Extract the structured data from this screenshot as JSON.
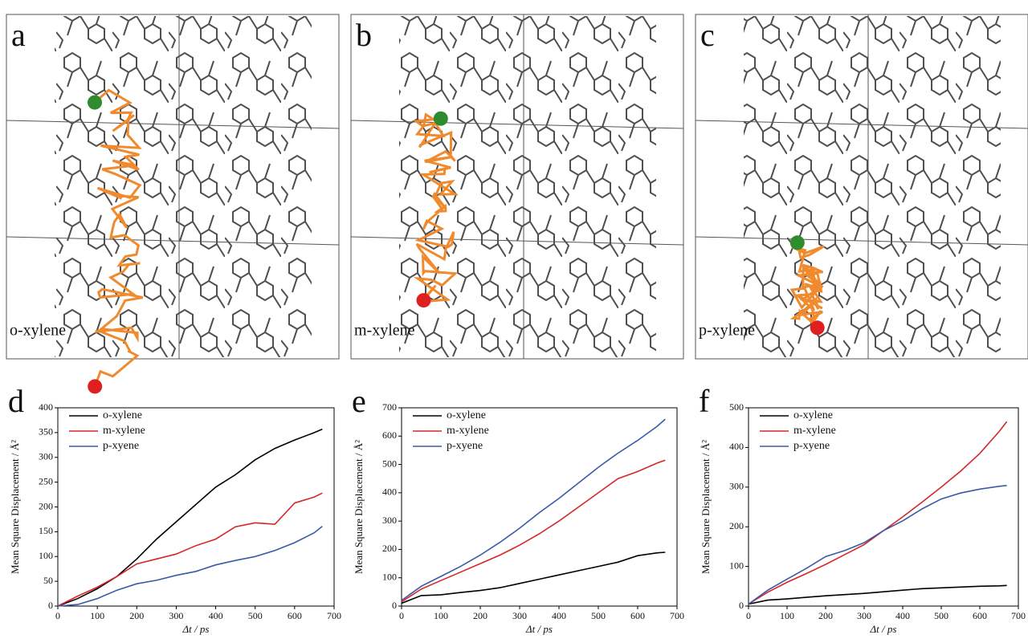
{
  "panels": [
    {
      "label": "a",
      "caption": "o-xylene"
    },
    {
      "label": "b",
      "caption": "m-xylene"
    },
    {
      "label": "c",
      "caption": "p-xylene"
    }
  ],
  "chart_data": [
    {
      "type": "line",
      "panel_label": "d",
      "xlabel": "Δt / ps",
      "ylabel": "Mean Square Displacement / Å²",
      "legend": "upper left",
      "x": [
        0,
        50,
        100,
        150,
        200,
        250,
        300,
        350,
        400,
        450,
        500,
        550,
        600,
        650,
        670
      ],
      "series": [
        {
          "name": "o-xylene",
          "color": "#000000",
          "values": [
            0,
            15,
            35,
            60,
            95,
            135,
            170,
            205,
            240,
            265,
            295,
            318,
            335,
            350,
            357
          ]
        },
        {
          "name": "m-xylene",
          "color": "#d62728",
          "values": [
            0,
            20,
            38,
            60,
            85,
            95,
            105,
            122,
            135,
            160,
            168,
            165,
            208,
            220,
            228
          ]
        },
        {
          "name": "p-xyene",
          "color": "#3a5aa8",
          "values": [
            0,
            3,
            15,
            32,
            45,
            52,
            62,
            70,
            83,
            92,
            100,
            112,
            128,
            148,
            161
          ]
        }
      ],
      "xlim": [
        0,
        700
      ],
      "xticks": [
        0,
        100,
        200,
        300,
        400,
        500,
        600,
        700
      ],
      "ylim": [
        0,
        400
      ],
      "yticks": [
        0,
        50,
        100,
        150,
        200,
        250,
        300,
        350,
        400
      ]
    },
    {
      "type": "line",
      "panel_label": "e",
      "xlabel": "Δt / ps",
      "ylabel": "Mean Square Displacement / Å²",
      "legend": "upper left",
      "x": [
        0,
        50,
        100,
        150,
        200,
        250,
        300,
        350,
        400,
        450,
        500,
        550,
        600,
        650,
        670
      ],
      "series": [
        {
          "name": "o-xylene",
          "color": "#000000",
          "values": [
            10,
            37,
            40,
            48,
            55,
            65,
            80,
            95,
            110,
            125,
            140,
            155,
            178,
            188,
            190
          ]
        },
        {
          "name": "m-xylene",
          "color": "#d62728",
          "values": [
            15,
            60,
            90,
            120,
            150,
            180,
            215,
            255,
            300,
            350,
            400,
            450,
            475,
            505,
            515
          ]
        },
        {
          "name": "p-xyene",
          "color": "#3a5aa8",
          "values": [
            20,
            70,
            105,
            140,
            180,
            225,
            275,
            330,
            380,
            435,
            490,
            540,
            585,
            635,
            660
          ]
        }
      ],
      "xlim": [
        0,
        700
      ],
      "xticks": [
        0,
        100,
        200,
        300,
        400,
        500,
        600,
        700
      ],
      "ylim": [
        0,
        700
      ],
      "yticks": [
        0,
        100,
        200,
        300,
        400,
        500,
        600,
        700
      ]
    },
    {
      "type": "line",
      "panel_label": "f",
      "xlabel": "Δt / ps",
      "ylabel": "Mean Square Displacement / Å²",
      "legend": "upper left",
      "x": [
        0,
        50,
        100,
        150,
        200,
        250,
        300,
        350,
        400,
        450,
        500,
        550,
        600,
        650,
        670
      ],
      "series": [
        {
          "name": "o-xylene",
          "color": "#000000",
          "values": [
            5,
            15,
            18,
            22,
            26,
            29,
            32,
            36,
            40,
            44,
            46,
            48,
            50,
            51,
            52
          ]
        },
        {
          "name": "m-xylene",
          "color": "#d62728",
          "values": [
            5,
            35,
            60,
            82,
            105,
            130,
            155,
            190,
            225,
            262,
            300,
            340,
            385,
            440,
            465
          ]
        },
        {
          "name": "p-xyene",
          "color": "#3a5aa8",
          "values": [
            5,
            40,
            68,
            95,
            125,
            140,
            160,
            190,
            215,
            245,
            270,
            285,
            295,
            302,
            304
          ]
        }
      ],
      "xlim": [
        0,
        700
      ],
      "xticks": [
        0,
        100,
        200,
        300,
        400,
        500,
        600,
        700
      ],
      "ylim": [
        0,
        500
      ],
      "yticks": [
        0,
        100,
        200,
        300,
        400,
        500
      ]
    }
  ]
}
